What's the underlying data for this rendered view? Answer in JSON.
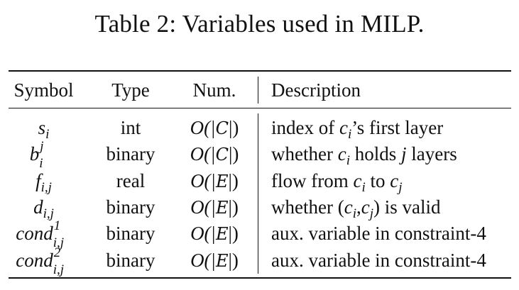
{
  "caption": "Table 2: Variables used in MILP.",
  "headers": {
    "symbol": "Symbol",
    "type": "Type",
    "num": "Num.",
    "description": "Description"
  },
  "rows": [
    {
      "symbol": {
        "base": "s",
        "sub": "i",
        "sup": ""
      },
      "type": "int",
      "num": {
        "prefix": "O(|",
        "set": "C",
        "suffix": "|)"
      },
      "description": {
        "t1": "index of ",
        "v1": "c",
        "v1sub": "i",
        "t2": "’s first layer",
        "v2": "",
        "v2sub": "",
        "t3": ""
      }
    },
    {
      "symbol": {
        "base": "b",
        "sub": "i",
        "sup": "j"
      },
      "type": "binary",
      "num": {
        "prefix": "O(|",
        "set": "C",
        "suffix": "|)"
      },
      "description": {
        "t1": "whether ",
        "v1": "c",
        "v1sub": "i",
        "t2": " holds ",
        "v2": "j",
        "v2sub": "",
        "t3": " layers"
      }
    },
    {
      "symbol": {
        "base": "f",
        "sub": "i,j",
        "sup": ""
      },
      "type": "real",
      "num": {
        "prefix": "O(|",
        "set": "E",
        "suffix": "|)"
      },
      "description": {
        "t1": "flow from ",
        "v1": "c",
        "v1sub": "i",
        "t2": " to ",
        "v2": "c",
        "v2sub": "j",
        "t3": ""
      }
    },
    {
      "symbol": {
        "base": "d",
        "sub": "i,j",
        "sup": ""
      },
      "type": "binary",
      "num": {
        "prefix": "O(|",
        "set": "E",
        "suffix": "|)"
      },
      "description": {
        "t1": "whether (",
        "v1": "c",
        "v1sub": "i",
        "t2": ",",
        "v2": "c",
        "v2sub": "j",
        "t3": ") is valid"
      }
    },
    {
      "symbol": {
        "base": "cond",
        "sub": "i,j",
        "sup": "1"
      },
      "type": "binary",
      "num": {
        "prefix": "O(|",
        "set": "E",
        "suffix": "|)"
      },
      "description": {
        "t1": "aux. variable in constraint-4",
        "v1": "",
        "v1sub": "",
        "t2": "",
        "v2": "",
        "v2sub": "",
        "t3": ""
      }
    },
    {
      "symbol": {
        "base": "cond",
        "sub": "i,j",
        "sup": "2"
      },
      "type": "binary",
      "num": {
        "prefix": "O(|",
        "set": "E",
        "suffix": "|)"
      },
      "description": {
        "t1": "aux. variable in constraint-4",
        "v1": "",
        "v1sub": "",
        "t2": "",
        "v2": "",
        "v2sub": "",
        "t3": ""
      }
    }
  ]
}
